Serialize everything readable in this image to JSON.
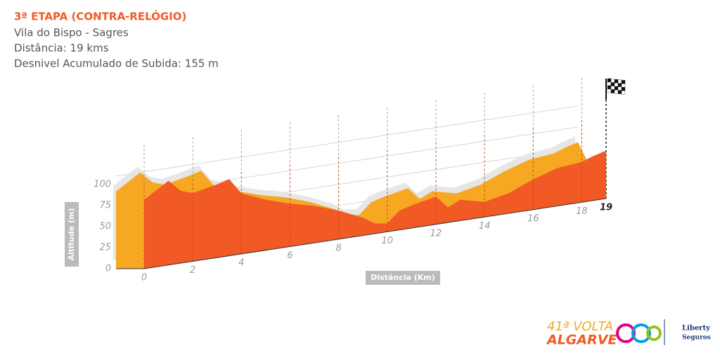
{
  "chart_data": {
    "type": "area",
    "title": "3ª ETAPA (CONTRA-RELÓGIO)",
    "subtitle": [
      "Vila do Bispo - Sagres",
      "Distância: 19 kms",
      "Desnivel Acumulado de Subida: 155 m"
    ],
    "x_label": "Distância (Km)",
    "y_label": "Altitude (m)",
    "x": [
      0,
      1,
      1.5,
      2,
      3,
      3.5,
      4,
      5,
      6,
      7,
      8,
      9,
      9.5,
      10,
      10.5,
      11,
      12,
      12.5,
      13,
      14,
      15,
      16,
      17,
      18,
      18.5,
      19
    ],
    "values": [
      82,
      100,
      86,
      81,
      87,
      91,
      72,
      60,
      51,
      44,
      34,
      21,
      12,
      10,
      23,
      27,
      33,
      18,
      25,
      18,
      24,
      36,
      45,
      48,
      53,
      57
    ],
    "front_color": "#f15a24",
    "back_color": "#f7a823",
    "xlim": [
      0,
      19
    ],
    "xticks": [
      0,
      2,
      4,
      6,
      8,
      10,
      12,
      14,
      16,
      18,
      19
    ],
    "ylim": [
      0,
      100
    ],
    "yticks": [
      0,
      25,
      50,
      75,
      100
    ],
    "grid": true,
    "logo": {
      "edition": "41ª VOLTA",
      "name": "ALGARVE",
      "sponsor": [
        "Liberty",
        "Seguros"
      ]
    }
  }
}
